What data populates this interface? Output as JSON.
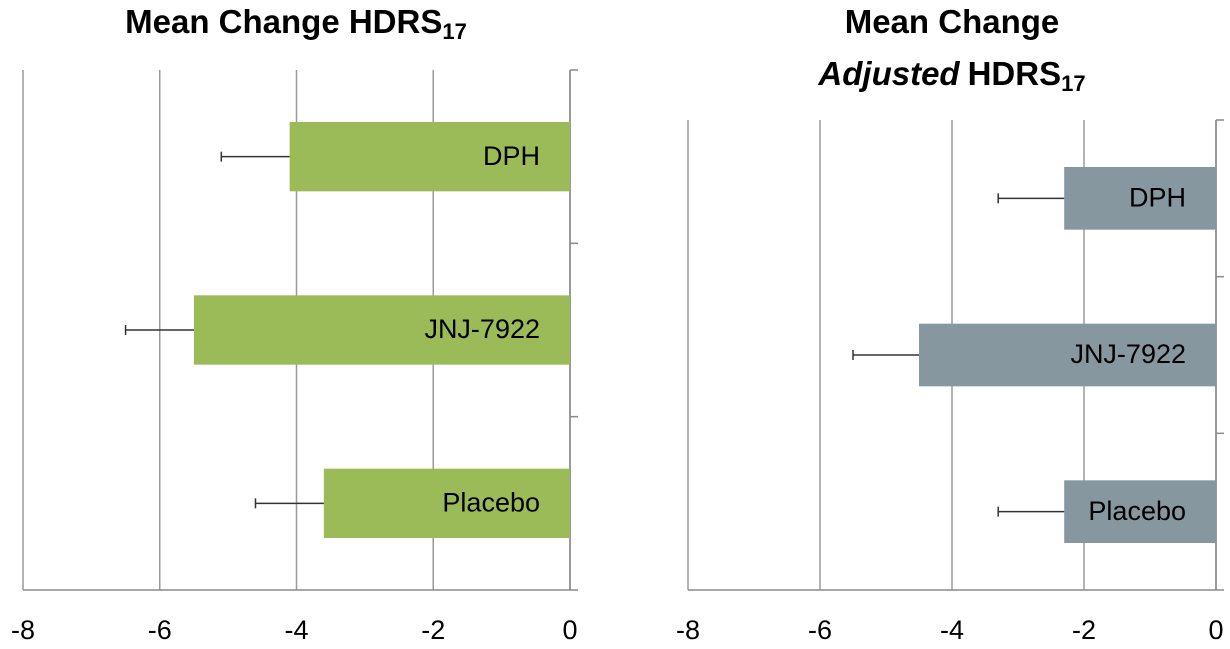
{
  "chart_data": [
    {
      "type": "bar",
      "orientation": "horizontal",
      "title": [
        [
          {
            "text": "Mean Change HDRS"
          },
          {
            "text": "17",
            "sub": true
          }
        ]
      ],
      "categories": [
        "DPH",
        "JNJ-7922",
        "Placebo"
      ],
      "values": [
        -4.1,
        -5.5,
        -3.6
      ],
      "errors": [
        1.0,
        1.0,
        1.0
      ],
      "color": "#9bbb59",
      "xlim": [
        -8,
        0
      ],
      "xticks": [
        -8,
        -6,
        -4,
        -2,
        0
      ],
      "grid": true
    },
    {
      "type": "bar",
      "orientation": "horizontal",
      "title": [
        [
          {
            "text": "Mean Change"
          }
        ],
        [
          {
            "text": "Adjusted",
            "italic": true
          },
          {
            "text": "HDRS"
          },
          {
            "text": "17",
            "sub": true
          }
        ]
      ],
      "categories": [
        "DPH",
        "JNJ-7922",
        "Placebo"
      ],
      "values": [
        -2.3,
        -4.5,
        -2.3
      ],
      "errors": [
        1.0,
        1.0,
        1.0
      ],
      "color": "#8797a0",
      "xlim": [
        -8,
        0
      ],
      "xticks": [
        -8,
        -6,
        -4,
        -2,
        0
      ],
      "grid": true
    }
  ]
}
